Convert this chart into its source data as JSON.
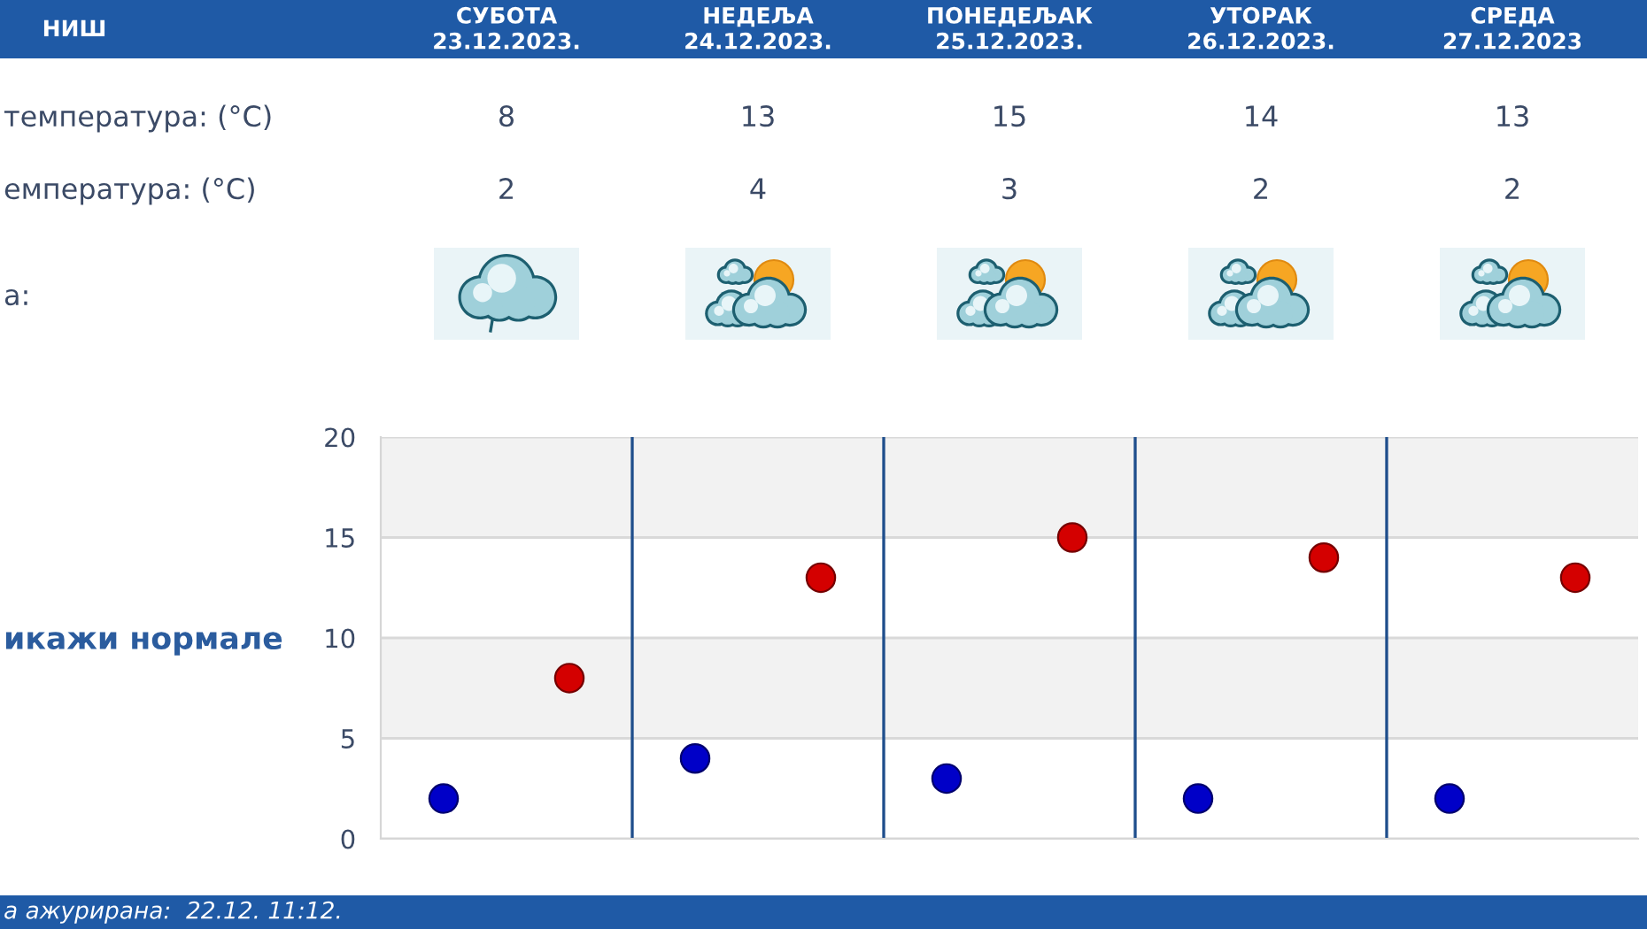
{
  "chart_data": {
    "type": "scatter",
    "title": "НИШ",
    "categories": [
      null,
      null,
      null,
      null,
      null
    ],
    "series": [
      {
        "color": "#d40000",
        "values": [
          8,
          13,
          15,
          14,
          13
        ]
      },
      {
        "color": "#0000c8",
        "values": [
          2,
          4,
          3,
          2,
          2
        ]
      }
    ],
    "ylim": [
      0,
      20
    ],
    "yticks": [
      0,
      5,
      10,
      15,
      20
    ],
    "grid": true,
    "bands": [
      {
        "axis": "y",
        "from": 5,
        "to": 10,
        "color": "#f2f2f2"
      },
      {
        "axis": "y",
        "from": 15,
        "to": 20,
        "color": "#f2f2f2"
      }
    ],
    "marker": "circle",
    "data_labels": true,
    "annotations": [
      "СУБОТА\n23.12.2023.",
      "НЕДЕЉА\n24.12.2023.",
      "ПОНЕДЕЉАК\n25.12.2023.",
      "УТОРАК\n26.12.2023.",
      "СРЕДА\n27.12.2023",
      "температура: (°C)",
      "емпература: (°C)",
      "а:",
      "икажи нормале",
      "а ажурирана:  22.12. 11:12."
    ]
  }
}
